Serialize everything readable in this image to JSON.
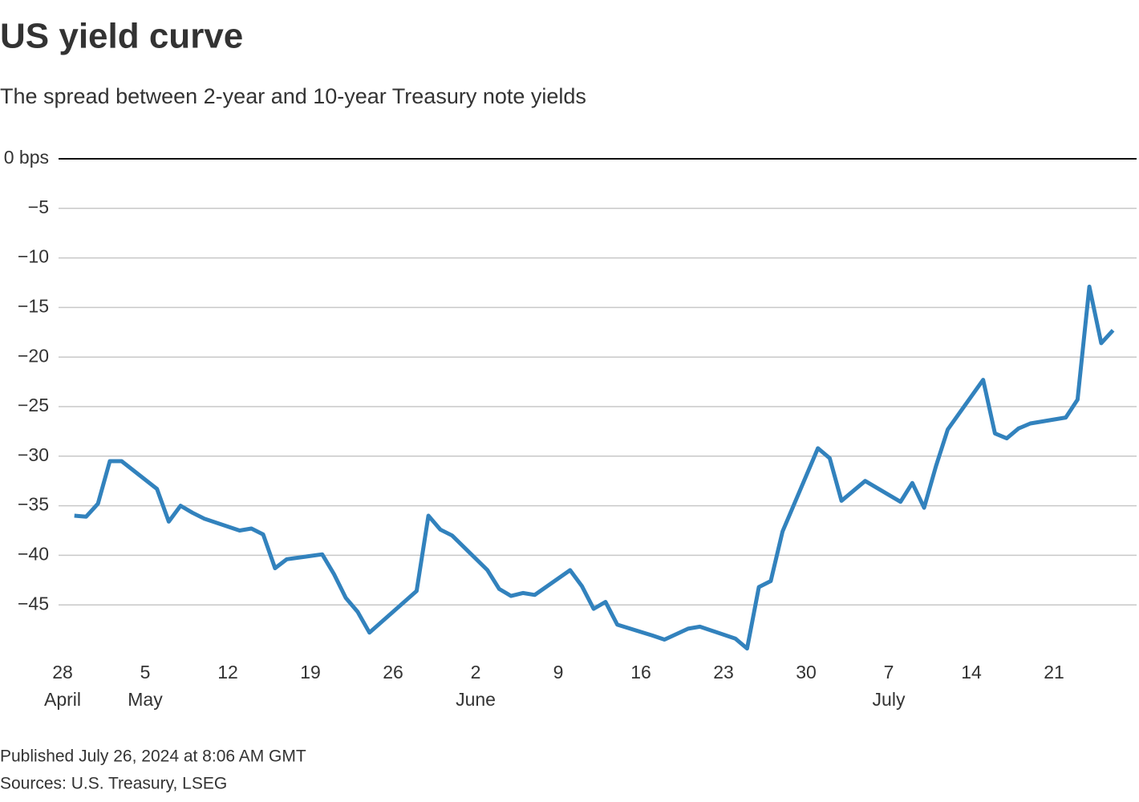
{
  "chart_data": {
    "type": "line",
    "title": "US yield curve",
    "subtitle": "The spread between 2-year and 10-year Treasury note yields",
    "published": "Published July 26, 2024 at 8:06 AM GMT",
    "source": "Sources: U.S. Treasury, LSEG",
    "x": [
      "04-29",
      "04-30",
      "05-01",
      "05-02",
      "05-03",
      "05-06",
      "05-07",
      "05-08",
      "05-09",
      "05-10",
      "05-13",
      "05-14",
      "05-15",
      "05-16",
      "05-17",
      "05-20",
      "05-21",
      "05-22",
      "05-23",
      "05-24",
      "05-28",
      "05-29",
      "05-30",
      "05-31",
      "06-03",
      "06-04",
      "06-05",
      "06-06",
      "06-07",
      "06-10",
      "06-11",
      "06-12",
      "06-13",
      "06-14",
      "06-17",
      "06-18",
      "06-20",
      "06-21",
      "06-24",
      "06-25",
      "06-26",
      "06-27",
      "06-28",
      "07-01",
      "07-02",
      "07-03",
      "07-05",
      "07-08",
      "07-09",
      "07-10",
      "07-11",
      "07-12",
      "07-15",
      "07-16",
      "07-17",
      "07-18",
      "07-19",
      "07-22",
      "07-23",
      "07-24",
      "07-25",
      "07-26"
    ],
    "series": [
      {
        "name": "2-year/10-year spread",
        "color": "#3282bd",
        "values": [
          -36.0,
          -36.1,
          -34.8,
          -30.5,
          -30.5,
          -33.3,
          -36.6,
          -35.0,
          -35.7,
          -36.3,
          -37.5,
          -37.3,
          -37.9,
          -41.3,
          -40.4,
          -39.9,
          -41.9,
          -44.3,
          -45.7,
          -47.8,
          -43.6,
          -36.0,
          -37.4,
          -38.0,
          -41.5,
          -43.4,
          -44.1,
          -43.8,
          -44.0,
          -41.5,
          -43.1,
          -45.4,
          -44.7,
          -47.0,
          -48.1,
          -48.5,
          -47.4,
          -47.2,
          -48.4,
          -49.4,
          -43.2,
          -42.6,
          -37.6,
          -29.2,
          -30.2,
          -34.5,
          -32.5,
          -34.6,
          -32.7,
          -35.2,
          -31.0,
          -27.3,
          -22.3,
          -27.7,
          -28.2,
          -27.2,
          -26.7,
          -26.1,
          -24.3,
          -12.9,
          -18.6,
          -17.3
        ]
      }
    ],
    "xlim": [
      "04-28",
      "07-28"
    ],
    "xticks": [
      {
        "value": "04-28",
        "label": "28"
      },
      {
        "value": "05-05",
        "label": "5"
      },
      {
        "value": "05-12",
        "label": "12"
      },
      {
        "value": "05-19",
        "label": "19"
      },
      {
        "value": "05-26",
        "label": "26"
      },
      {
        "value": "06-02",
        "label": "2"
      },
      {
        "value": "06-09",
        "label": "9"
      },
      {
        "value": "06-16",
        "label": "16"
      },
      {
        "value": "06-23",
        "label": "23"
      },
      {
        "value": "06-30",
        "label": "30"
      },
      {
        "value": "07-07",
        "label": "7"
      },
      {
        "value": "07-14",
        "label": "14"
      },
      {
        "value": "07-21",
        "label": "21"
      }
    ],
    "month_labels": [
      {
        "value": "04-28",
        "label": "April"
      },
      {
        "value": "05-05",
        "label": "May"
      },
      {
        "value": "06-02",
        "label": "June"
      },
      {
        "value": "07-07",
        "label": "July"
      }
    ],
    "ylim": [
      -50,
      0
    ],
    "yticks": [
      {
        "value": 0,
        "label": "0 bps"
      },
      {
        "value": -5,
        "label": "−5"
      },
      {
        "value": -10,
        "label": "−10"
      },
      {
        "value": -15,
        "label": "−15"
      },
      {
        "value": -20,
        "label": "−20"
      },
      {
        "value": -25,
        "label": "−25"
      },
      {
        "value": -30,
        "label": "−30"
      },
      {
        "value": -35,
        "label": "−35"
      },
      {
        "value": -40,
        "label": "−40"
      },
      {
        "value": -45,
        "label": "−45"
      }
    ],
    "grid": true
  }
}
